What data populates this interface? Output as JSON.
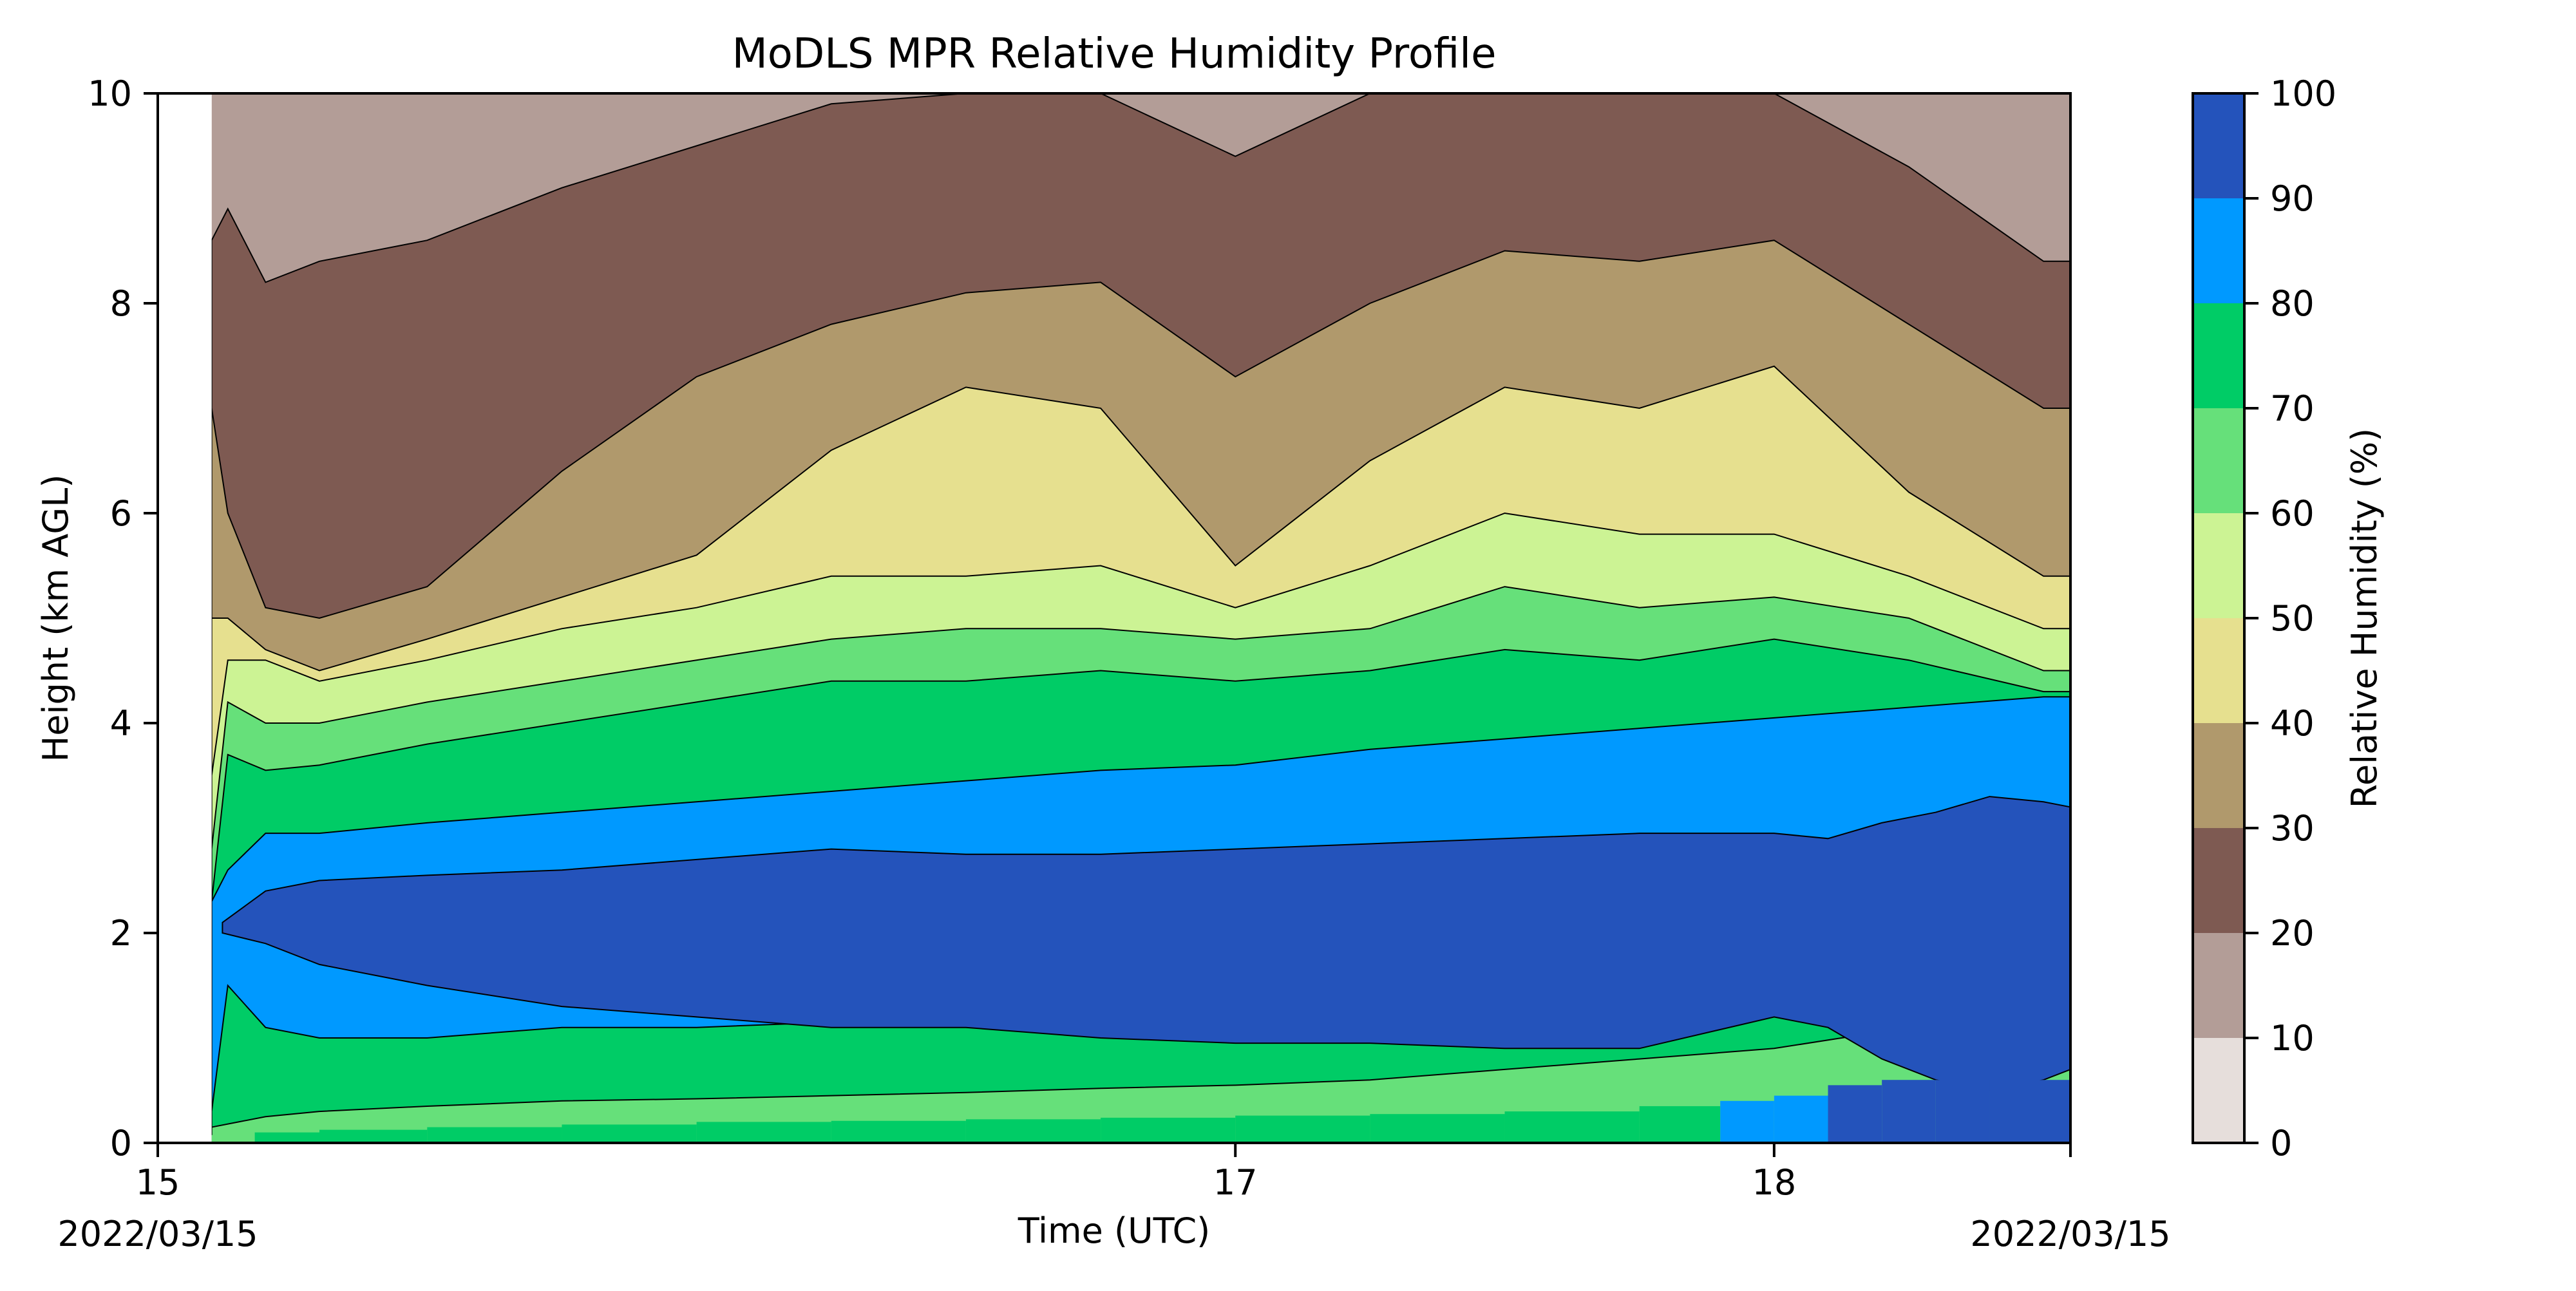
{
  "chart_data": {
    "type": "heatmap",
    "subtype": "filled-contour",
    "title": "MoDLS MPR Relative Humidity Profile",
    "xlabel": "Time (UTC)",
    "ylabel": "Height (km AGL)",
    "xlim": [
      15,
      18.55
    ],
    "ylim": [
      0,
      10
    ],
    "x_ticks": [
      15,
      17,
      18
    ],
    "x_tick_labels": [
      "15",
      "17",
      "18"
    ],
    "x_date_labels": [
      "2022/03/15",
      "2022/03/15"
    ],
    "y_ticks": [
      0,
      2,
      4,
      6,
      8,
      10
    ],
    "grid": false,
    "colorbar": {
      "label": "Relative Humidity (%)",
      "levels": [
        0,
        10,
        20,
        30,
        40,
        50,
        60,
        70,
        80,
        90,
        100
      ],
      "colors": [
        "#e6dedb",
        "#b39d97",
        "#7e5a52",
        "#b0996c",
        "#e6e08f",
        "#ccf394",
        "#66e07a",
        "#00cc66",
        "#0099ff",
        "#2453bb"
      ]
    },
    "data_start_x": 15.1,
    "bottom_band": {
      "x": [
        15.1,
        15.18,
        15.3,
        15.5,
        15.75,
        16.0,
        16.25,
        16.5,
        16.75,
        17.0,
        17.25,
        17.5,
        17.75,
        17.9,
        18.0,
        18.1,
        18.2,
        18.3,
        18.4,
        18.55
      ],
      "rh": [
        60,
        70,
        70,
        70,
        70,
        70,
        70,
        70,
        70,
        70,
        70,
        70,
        70,
        80,
        80,
        90,
        90,
        90,
        90,
        90
      ]
    },
    "contours": [
      {
        "level": 60,
        "x": [
          15.1,
          15.15,
          15.2,
          15.3,
          15.5,
          15.75,
          16.0,
          16.25,
          16.5,
          16.75,
          17.0,
          17.25,
          17.5,
          17.75,
          18.0,
          18.25,
          18.5,
          18.55
        ],
        "y": [
          0.15,
          0.2,
          0.25,
          0.3,
          0.35,
          0.4,
          0.42,
          0.45,
          0.48,
          0.52,
          0.55,
          0.6,
          0.7,
          0.8,
          0.9,
          1.1,
          1.2,
          1.2
        ]
      },
      {
        "level": 70,
        "x": [
          15.1,
          15.13,
          15.2,
          15.3,
          15.5,
          15.75,
          16.0,
          16.25,
          16.5,
          16.75,
          17.0,
          17.25,
          17.5,
          17.75,
          18.0,
          18.25,
          18.5,
          18.55
        ],
        "y": [
          0.3,
          1.5,
          1.1,
          1.0,
          1.0,
          1.1,
          1.1,
          1.15,
          1.2,
          1.25,
          1.3,
          1.4,
          1.45,
          1.5,
          1.6,
          1.8,
          1.9,
          1.9
        ]
      },
      {
        "level": 80,
        "x": [
          15.1,
          15.13,
          15.2,
          15.3,
          15.5,
          15.75,
          16.0,
          16.25,
          16.5,
          16.75,
          17.0,
          17.25,
          17.5,
          17.75,
          18.0,
          18.25,
          18.5,
          18.55
        ],
        "y": [
          2.3,
          2.6,
          2.95,
          2.95,
          3.05,
          3.15,
          3.25,
          3.35,
          3.45,
          3.55,
          3.6,
          3.75,
          3.85,
          3.95,
          4.05,
          4.15,
          4.25,
          4.25
        ]
      },
      {
        "level": 70,
        "x": [
          15.1,
          15.13,
          15.2,
          15.3,
          15.5,
          15.75,
          16.0,
          16.25,
          16.5,
          16.75,
          17.0,
          17.25,
          17.5,
          17.75,
          18.0,
          18.25,
          18.5,
          18.55
        ],
        "y": [
          2.3,
          3.7,
          3.55,
          3.6,
          3.8,
          4.0,
          4.2,
          4.4,
          4.4,
          4.5,
          4.4,
          4.5,
          4.7,
          4.6,
          4.8,
          4.6,
          4.3,
          4.3
        ]
      },
      {
        "level": 60,
        "x": [
          15.1,
          15.13,
          15.2,
          15.3,
          15.5,
          15.75,
          16.0,
          16.25,
          16.5,
          16.75,
          17.0,
          17.25,
          17.5,
          17.75,
          18.0,
          18.25,
          18.5,
          18.55
        ],
        "y": [
          2.8,
          4.2,
          4.0,
          4.0,
          4.2,
          4.4,
          4.6,
          4.8,
          4.9,
          4.9,
          4.8,
          4.9,
          5.3,
          5.1,
          5.2,
          5.0,
          4.5,
          4.5
        ]
      },
      {
        "level": 50,
        "x": [
          15.1,
          15.13,
          15.2,
          15.3,
          15.5,
          15.75,
          16.0,
          16.25,
          16.5,
          16.75,
          17.0,
          17.25,
          17.5,
          17.75,
          18.0,
          18.25,
          18.5,
          18.55
        ],
        "y": [
          3.5,
          4.6,
          4.6,
          4.4,
          4.6,
          4.9,
          5.1,
          5.4,
          5.4,
          5.5,
          5.1,
          5.5,
          6.0,
          5.8,
          5.8,
          5.4,
          4.9,
          4.9
        ]
      },
      {
        "level": 40,
        "x": [
          15.1,
          15.13,
          15.2,
          15.3,
          15.5,
          15.75,
          16.0,
          16.25,
          16.5,
          16.75,
          17.0,
          17.25,
          17.5,
          17.75,
          18.0,
          18.25,
          18.5,
          18.55
        ],
        "y": [
          5.0,
          5.0,
          4.7,
          4.5,
          4.8,
          5.2,
          5.6,
          6.6,
          7.2,
          7.0,
          5.5,
          6.5,
          7.2,
          7.0,
          7.4,
          6.2,
          5.4,
          5.4
        ]
      },
      {
        "level": 30,
        "x": [
          15.1,
          15.13,
          15.2,
          15.3,
          15.5,
          15.75,
          16.0,
          16.25,
          16.5,
          16.75,
          17.0,
          17.25,
          17.5,
          17.75,
          18.0,
          18.25,
          18.5,
          18.55
        ],
        "y": [
          7.0,
          6.0,
          5.1,
          5.0,
          5.3,
          6.4,
          7.3,
          7.8,
          8.1,
          8.2,
          7.3,
          8.0,
          8.5,
          8.4,
          8.6,
          7.8,
          7.0,
          7.0
        ]
      },
      {
        "level": 20,
        "x": [
          15.1,
          15.13,
          15.2,
          15.3,
          15.5,
          15.75,
          16.0,
          16.25,
          16.5,
          16.75,
          17.0,
          17.25,
          17.5,
          17.75,
          18.0,
          18.25,
          18.5,
          18.55
        ],
        "y": [
          8.6,
          8.9,
          8.2,
          8.4,
          8.6,
          9.1,
          9.5,
          9.9,
          10.0,
          10.0,
          9.4,
          10.0,
          10.0,
          10.0,
          10.0,
          9.3,
          8.4,
          8.4
        ]
      }
    ],
    "core_90": {
      "x": [
        15.12,
        15.2,
        15.3,
        15.5,
        15.75,
        16.0,
        16.25,
        16.5,
        16.75,
        17.0,
        17.25,
        17.5,
        17.75,
        18.0,
        18.1,
        18.2,
        18.3,
        18.4,
        18.5,
        18.55
      ],
      "top": [
        2.1,
        2.4,
        2.5,
        2.55,
        2.6,
        2.7,
        2.8,
        2.75,
        2.75,
        2.8,
        2.85,
        2.9,
        2.95,
        2.95,
        2.9,
        3.05,
        3.15,
        3.3,
        3.25,
        3.2
      ],
      "bottom": [
        2.0,
        1.9,
        1.7,
        1.5,
        1.3,
        1.2,
        1.1,
        1.1,
        1.0,
        0.95,
        0.95,
        0.9,
        0.9,
        1.2,
        1.1,
        0.8,
        0.6,
        0.5,
        0.6,
        0.7
      ]
    }
  }
}
